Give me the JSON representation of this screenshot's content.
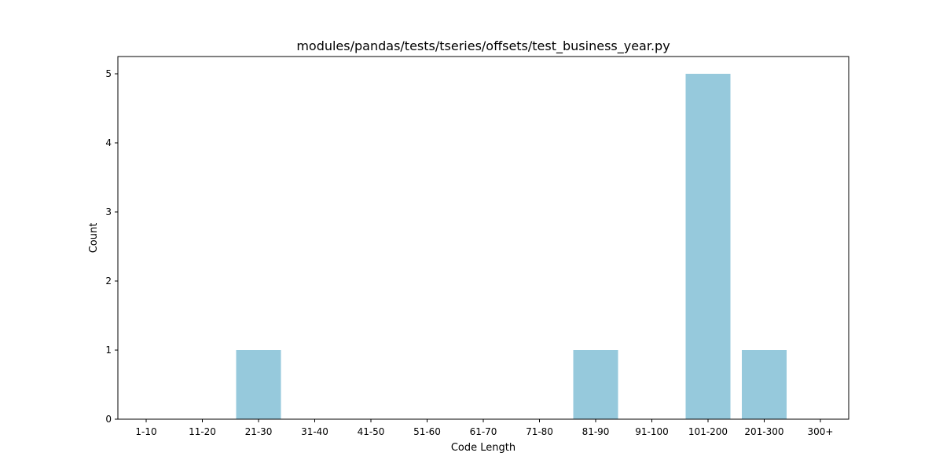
{
  "chart_data": {
    "type": "bar",
    "title": "modules/pandas/tests/tseries/offsets/test_business_year.py",
    "xlabel": "Code Length",
    "ylabel": "Count",
    "categories": [
      "1-10",
      "11-20",
      "21-30",
      "31-40",
      "41-50",
      "51-60",
      "61-70",
      "71-80",
      "81-90",
      "91-100",
      "101-200",
      "201-300",
      "300+"
    ],
    "values": [
      0,
      0,
      1,
      0,
      0,
      0,
      0,
      0,
      1,
      0,
      5,
      1,
      0
    ],
    "ylim": [
      0,
      5.25
    ],
    "yticks": [
      0,
      1,
      2,
      3,
      4,
      5
    ],
    "bar_color": "#96c9dc",
    "grid": false
  }
}
